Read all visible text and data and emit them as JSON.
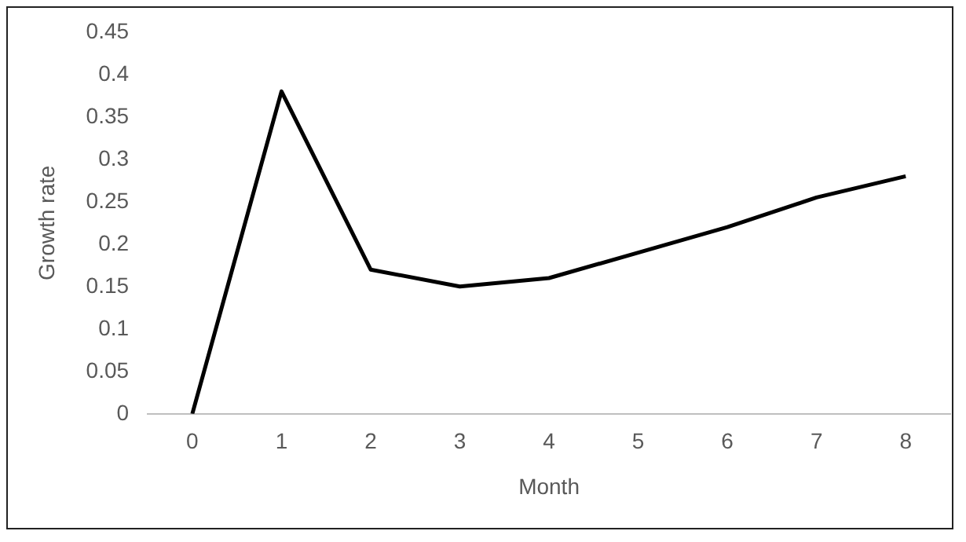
{
  "chart_data": {
    "type": "line",
    "xlabel": "Month",
    "ylabel": "Growth rate",
    "categories": [
      "0",
      "1",
      "2",
      "3",
      "4",
      "5",
      "6",
      "7",
      "8"
    ],
    "series": [
      {
        "color": "#000000",
        "values": [
          0,
          0.38,
          0.17,
          0.15,
          0.16,
          0.19,
          0.22,
          0.255,
          0.28
        ]
      }
    ],
    "ylim": [
      0,
      0.45
    ],
    "yticks": [
      0,
      0.05,
      0.1,
      0.15,
      0.2,
      0.25,
      0.3,
      0.35,
      0.4,
      0.45
    ],
    "grid": false,
    "legend": false,
    "marker": "none",
    "line_style": "solid"
  }
}
